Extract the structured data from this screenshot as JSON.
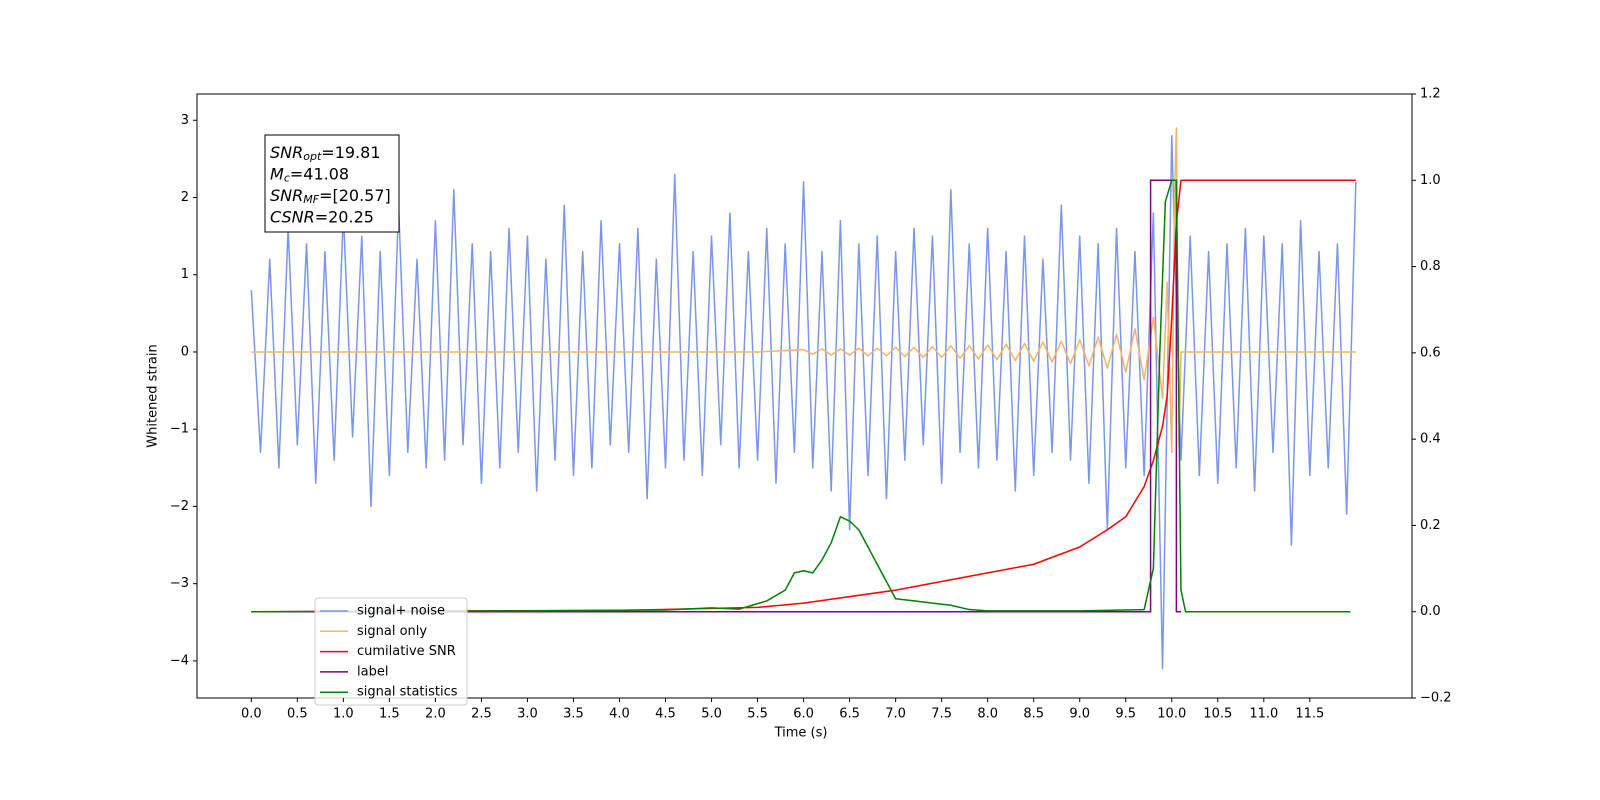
{
  "chart_data": {
    "type": "line",
    "xlabel": "Time (s)",
    "ylabel": "Whitened strain",
    "xlim": [
      -0.59,
      12.61
    ],
    "ylim": [
      -4.48,
      3.34
    ],
    "y2lim": [
      -0.2,
      1.2
    ],
    "xticks": [
      {
        "value": 0,
        "label": "0.0"
      },
      0.5,
      {
        "value": 1,
        "label": "1.0"
      },
      1.5,
      {
        "value": 2,
        "label": "2.0"
      },
      2.5,
      {
        "value": 3,
        "label": "3.0"
      },
      3.5,
      {
        "value": 4,
        "label": "4.0"
      },
      4.5,
      {
        "value": 5,
        "label": "5.0"
      },
      5.5,
      {
        "value": 6,
        "label": "6.0"
      },
      6.5,
      {
        "value": 7,
        "label": "7.0"
      },
      7.5,
      {
        "value": 8,
        "label": "8.0"
      },
      8.5,
      {
        "value": 9,
        "label": "9.0"
      },
      9.5,
      {
        "value": 10,
        "label": "10.0"
      },
      10.5,
      {
        "value": 11,
        "label": "11.0"
      },
      11.5
    ],
    "yticks": [
      {
        "value": -4,
        "label": "−4"
      },
      {
        "value": -3,
        "label": "−3"
      },
      {
        "value": -2,
        "label": "−2"
      },
      {
        "value": -1,
        "label": "−1"
      },
      0,
      1,
      2,
      3
    ],
    "y2ticks": [
      {
        "value": -0.2,
        "label": "−0.2"
      },
      {
        "value": 0,
        "label": "0.0"
      },
      0.2,
      0.4,
      0.6,
      0.8,
      {
        "value": 1,
        "label": "1.0"
      },
      1.2
    ],
    "annotation": [
      {
        "symbol": "SNR",
        "subscript": "opt",
        "text": "=19.81"
      },
      {
        "symbol": "M",
        "subscript": "c",
        "text": "=41.08"
      },
      {
        "symbol": "SNR",
        "subscript": "MF",
        "text": "=[20.57]"
      },
      {
        "symbol": "CSNR",
        "text": "=20.25"
      }
    ],
    "series": [
      {
        "name": "signal+ noise",
        "color": "#7a96ea",
        "x": [
          0,
          0.1,
          0.2,
          0.3,
          0.4,
          0.5,
          0.6,
          0.7,
          0.8,
          0.9,
          1.0,
          1.1,
          1.2,
          1.3,
          1.4,
          1.5,
          1.6,
          1.7,
          1.8,
          1.9,
          2.0,
          2.1,
          2.2,
          2.3,
          2.4,
          2.5,
          2.6,
          2.7,
          2.8,
          2.9,
          3.0,
          3.1,
          3.2,
          3.3,
          3.4,
          3.5,
          3.6,
          3.7,
          3.8,
          3.9,
          4.0,
          4.1,
          4.2,
          4.3,
          4.4,
          4.5,
          4.6,
          4.7,
          4.8,
          4.9,
          5.0,
          5.1,
          5.2,
          5.3,
          5.4,
          5.5,
          5.6,
          5.7,
          5.8,
          5.9,
          6.0,
          6.1,
          6.2,
          6.3,
          6.4,
          6.5,
          6.6,
          6.7,
          6.8,
          6.9,
          7.0,
          7.1,
          7.2,
          7.3,
          7.4,
          7.5,
          7.6,
          7.7,
          7.8,
          7.9,
          8.0,
          8.1,
          8.2,
          8.3,
          8.4,
          8.5,
          8.6,
          8.7,
          8.8,
          8.9,
          9.0,
          9.1,
          9.2,
          9.3,
          9.4,
          9.5,
          9.6,
          9.7,
          9.8,
          9.9,
          10.0,
          10.1,
          10.2,
          10.3,
          10.4,
          10.5,
          10.6,
          10.7,
          10.8,
          10.9,
          11.0,
          11.1,
          11.2,
          11.3,
          11.4,
          11.5,
          11.6,
          11.7,
          11.8,
          11.9,
          12.0
        ],
        "values": [
          0.8,
          -1.3,
          1.2,
          -1.5,
          1.6,
          -1.2,
          1.4,
          -1.7,
          1.3,
          -1.4,
          1.8,
          -1.1,
          1.5,
          -2.0,
          1.3,
          -1.6,
          1.9,
          -1.3,
          1.2,
          -1.5,
          1.7,
          -1.4,
          2.1,
          -1.2,
          1.4,
          -1.7,
          1.3,
          -1.5,
          1.6,
          -1.3,
          1.5,
          -1.8,
          1.2,
          -1.4,
          1.9,
          -1.6,
          1.3,
          -1.5,
          1.7,
          -1.2,
          1.4,
          -1.3,
          1.6,
          -1.9,
          1.2,
          -1.5,
          2.3,
          -1.4,
          1.3,
          -1.6,
          1.5,
          -1.2,
          1.8,
          -1.5,
          1.3,
          -1.4,
          1.6,
          -1.7,
          1.4,
          -1.3,
          2.2,
          -1.5,
          1.3,
          -1.8,
          1.7,
          -2.3,
          1.4,
          -1.6,
          1.5,
          -1.9,
          1.3,
          -1.4,
          1.6,
          -1.2,
          1.5,
          -1.7,
          2.1,
          -1.3,
          1.4,
          -1.5,
          1.6,
          -1.4,
          1.3,
          -1.8,
          1.5,
          -1.6,
          1.2,
          -1.3,
          1.9,
          -1.4,
          1.5,
          -1.7,
          1.4,
          -2.3,
          1.6,
          -1.5,
          1.3,
          -1.6,
          1.8,
          -4.1,
          2.8,
          -1.4,
          1.5,
          -1.6,
          1.3,
          -1.7,
          1.4,
          -1.5,
          1.6,
          -1.8,
          1.5,
          -1.3,
          1.4,
          -2.5,
          1.7,
          -1.6,
          1.3,
          -1.5,
          1.4,
          -2.1,
          2.2
        ]
      },
      {
        "name": "signal only",
        "color": "#f5b26b",
        "x": [
          0,
          5.5,
          6.0,
          6.1,
          6.2,
          6.3,
          6.4,
          6.5,
          6.6,
          6.7,
          6.8,
          6.9,
          7.0,
          7.1,
          7.2,
          7.3,
          7.4,
          7.5,
          7.6,
          7.7,
          7.8,
          7.9,
          8.0,
          8.1,
          8.2,
          8.3,
          8.4,
          8.5,
          8.6,
          8.7,
          8.8,
          8.9,
          9.0,
          9.1,
          9.2,
          9.3,
          9.4,
          9.5,
          9.6,
          9.7,
          9.8,
          9.9,
          9.95,
          10.0,
          10.03,
          10.05,
          10.08,
          10.1,
          12.0
        ],
        "values": [
          0,
          0,
          0.03,
          -0.03,
          0.04,
          -0.04,
          0.04,
          -0.04,
          0.05,
          -0.05,
          0.05,
          -0.05,
          0.06,
          -0.06,
          0.06,
          -0.07,
          0.07,
          -0.07,
          0.08,
          -0.08,
          0.08,
          -0.09,
          0.09,
          -0.1,
          0.1,
          -0.11,
          0.11,
          -0.12,
          0.13,
          -0.13,
          0.14,
          -0.15,
          0.16,
          -0.18,
          0.19,
          -0.21,
          0.23,
          -0.26,
          0.3,
          -0.36,
          0.45,
          -0.6,
          0.9,
          -1.3,
          2.0,
          2.9,
          -1.2,
          0,
          0
        ]
      },
      {
        "name": "cumilative SNR",
        "color": "#ff0000",
        "axis": "y2",
        "x": [
          0,
          4.0,
          5.5,
          6.0,
          7.0,
          8.0,
          8.5,
          9.0,
          9.3,
          9.5,
          9.7,
          9.8,
          9.9,
          9.95,
          10.0,
          10.05,
          10.1,
          12.0
        ],
        "values": [
          0,
          0.003,
          0.01,
          0.02,
          0.05,
          0.09,
          0.11,
          0.15,
          0.19,
          0.22,
          0.29,
          0.35,
          0.43,
          0.5,
          0.68,
          0.9,
          1.0,
          1.0
        ]
      },
      {
        "name": "label",
        "color": "#800080",
        "axis": "y2",
        "x": [
          0,
          9.77,
          9.77,
          10.05,
          10.05,
          10.1
        ],
        "values": [
          0,
          0,
          1,
          1,
          0,
          0
        ]
      },
      {
        "name": "signal statistics",
        "color": "#008000",
        "axis": "y2",
        "x": [
          0,
          3.0,
          4.5,
          5.0,
          5.3,
          5.6,
          5.8,
          5.9,
          6.0,
          6.1,
          6.2,
          6.3,
          6.4,
          6.5,
          6.6,
          6.7,
          6.8,
          6.9,
          7.0,
          7.2,
          7.4,
          7.6,
          7.8,
          8.0,
          9.0,
          9.7,
          9.8,
          9.87,
          9.93,
          10.0,
          10.05,
          10.1,
          10.15,
          11.94
        ],
        "values": [
          0,
          0.002,
          0.004,
          0.009,
          0.006,
          0.025,
          0.05,
          0.09,
          0.095,
          0.09,
          0.12,
          0.16,
          0.22,
          0.21,
          0.19,
          0.15,
          0.11,
          0.07,
          0.03,
          0.025,
          0.02,
          0.015,
          0.005,
          0.002,
          0.002,
          0.005,
          0.1,
          0.6,
          0.95,
          1.0,
          1.0,
          0.05,
          0,
          0
        ]
      }
    ]
  }
}
